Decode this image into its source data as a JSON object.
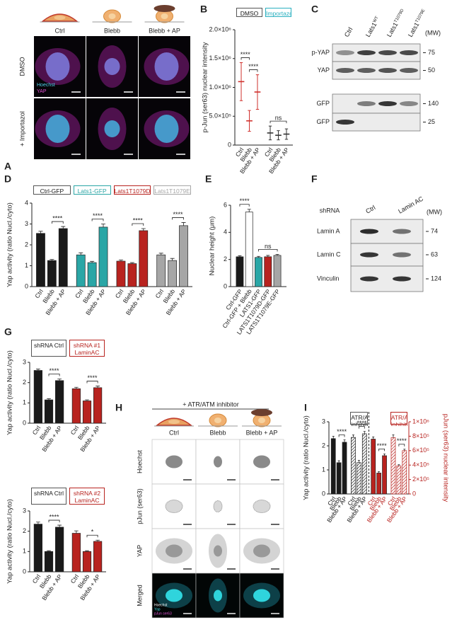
{
  "panel_labels": [
    "A",
    "B",
    "C",
    "D",
    "E",
    "F",
    "G",
    "H",
    "I"
  ],
  "panel_a": {
    "columns": [
      "Ctrl",
      "Blebb",
      "Blebb + AP"
    ],
    "rows": [
      "DMSO",
      "+ Importazol"
    ],
    "channels": [
      "Hoechst",
      "YAP"
    ]
  },
  "panel_c": {
    "lanes": [
      {
        "name": "Ctrl"
      },
      {
        "name": "Lats1",
        "sup": "WT"
      },
      {
        "name": "Lats1",
        "sup": "T1079D"
      },
      {
        "name": "Lats1",
        "sup": "T1079E"
      }
    ],
    "mw_label": "(MW)",
    "blots": [
      {
        "label": "p-YAP",
        "mw": 75
      },
      {
        "label": "YAP",
        "mw": 50
      },
      {
        "label": "GFP",
        "mw": 140
      },
      {
        "label": "GFP",
        "mw": 25
      }
    ]
  },
  "panel_f": {
    "header": "shRNA",
    "lanes": [
      "Ctrl",
      "Lamin AC"
    ],
    "mw_label": "(MW)",
    "blots": [
      {
        "label": "Lamin A",
        "mw": 74
      },
      {
        "label": "Lamin C",
        "mw": 63
      },
      {
        "label": "Vinculin",
        "mw": 124
      }
    ]
  },
  "panel_h": {
    "treatment": "+ ATR/ATM inhibitor",
    "columns": [
      "Ctrl",
      "Blebb",
      "Blebb + AP"
    ],
    "rows": [
      "Hoechst",
      "pJun (ser63)",
      "YAP",
      "Merged"
    ],
    "channels": [
      "Hoechst",
      "Yap",
      "pJun ser63"
    ]
  },
  "chart_data": [
    {
      "type": "dot",
      "ylabel": "p-Jun (ser63)  nuclear intensity",
      "categories": [
        "Ctrl",
        "Blebb",
        "Blebb + AP"
      ],
      "series": [
        {
          "name": "DMSO",
          "color": "#111111",
          "line_color": "#d0312d",
          "values": [
            1100000,
            420000,
            920000
          ],
          "errors": [
            330000,
            180000,
            300000
          ]
        },
        {
          "name": "Importazol",
          "color": "#2ab0c0",
          "line_color": "#333333",
          "values": [
            210000,
            170000,
            190000
          ],
          "errors": [
            120000,
            80000,
            90000
          ]
        }
      ],
      "ylim": [
        0,
        2000000
      ],
      "yticks": [
        0,
        {
          "value": 500000,
          "label": "5.0×10⁵"
        },
        {
          "value": 1000000,
          "label": "1.0×10⁶"
        },
        {
          "value": 1500000,
          "label": "1.5×10⁶"
        },
        {
          "value": 2000000,
          "label": "2.0×10⁶"
        }
      ],
      "annotations": [
        "****",
        "****",
        "ns"
      ]
    },
    {
      "type": "bar",
      "ylabel": "Yap activity (ratio Nucl./cyto)",
      "categories": [
        "Ctrl",
        "Blebb",
        "Blebb + AP"
      ],
      "series": [
        {
          "name": "Ctrl-GFP",
          "color": "#1a1a1a",
          "values": [
            2.55,
            1.25,
            2.78
          ],
          "errors": [
            0.1,
            0.05,
            0.1
          ]
        },
        {
          "name": "Lats1-GFP",
          "color": "#2aa6a6",
          "values": [
            1.52,
            1.15,
            2.85
          ],
          "errors": [
            0.1,
            0.06,
            0.15
          ]
        },
        {
          "name": "Lats1T1079D-GFP",
          "color": "#b8231f",
          "values": [
            1.22,
            1.1,
            2.68
          ],
          "errors": [
            0.06,
            0.05,
            0.1
          ]
        },
        {
          "name": "Lats1T1079E-GFP",
          "color": "#a6a6a6",
          "values": [
            1.52,
            1.25,
            2.92
          ],
          "errors": [
            0.08,
            0.1,
            0.15
          ]
        }
      ],
      "ylim": [
        0,
        4
      ],
      "yticks": [
        0,
        1,
        2,
        3,
        4
      ],
      "annotations": [
        "****",
        "****",
        "****",
        "****"
      ]
    },
    {
      "type": "bar",
      "ylabel": "Nuclear height (μm)",
      "categories": [
        "Ctrl-GFP",
        "Ctrl-GFP + Blebb",
        "LATS1-GFP",
        "LATS1T1079D-GFP",
        "LATS1T1079E-GFP"
      ],
      "values": [
        2.2,
        5.5,
        2.15,
        2.2,
        2.3
      ],
      "errors": [
        0.08,
        0.2,
        0.08,
        0.1,
        0.08
      ],
      "colors": [
        "#1a1a1a",
        "#ffffff",
        "#2aa6a6",
        "#b8231f",
        "#a6a6a6"
      ],
      "ylim": [
        0,
        6
      ],
      "yticks": [
        0,
        2,
        4,
        6
      ],
      "annotations": [
        "****",
        "ns"
      ]
    },
    {
      "type": "bar",
      "ylabel": "Yap activity (ratio Nucl./cyto)",
      "categories": [
        "Ctrl",
        "Blebb",
        "Blebb + AP"
      ],
      "series": [
        {
          "name": "shRNA Ctrl",
          "color": "#1a1a1a",
          "values": [
            2.6,
            1.15,
            2.1
          ],
          "errors": [
            0.07,
            0.06,
            0.08
          ]
        },
        {
          "name": "shRNA #1 LaminAC",
          "color": "#b8231f",
          "values": [
            1.7,
            1.1,
            1.75
          ],
          "errors": [
            0.07,
            0.05,
            0.08
          ]
        }
      ],
      "ylim": [
        0,
        3
      ],
      "yticks": [
        0,
        1,
        2,
        3
      ],
      "annotations": [
        "****",
        "****"
      ]
    },
    {
      "type": "bar",
      "ylabel": "Yap activity (ratio Nucl./cyto)",
      "categories": [
        "Ctrl",
        "Blebb",
        "Blebb + AP"
      ],
      "series": [
        {
          "name": "shRNA Ctrl",
          "color": "#1a1a1a",
          "values": [
            2.35,
            1.0,
            2.2
          ],
          "errors": [
            0.1,
            0.04,
            0.1
          ]
        },
        {
          "name": "shRNA #2 LaminAC",
          "color": "#b8231f",
          "values": [
            1.9,
            1.0,
            1.5
          ],
          "errors": [
            0.12,
            0.04,
            0.06
          ]
        }
      ],
      "ylim": [
        0,
        3
      ],
      "yticks": [
        0,
        1,
        2,
        3
      ],
      "annotations": [
        "****",
        "*"
      ]
    },
    {
      "type": "bar",
      "ylabel": "Yap activity (ratio Nucl./cyto)",
      "y2label": "pJun (ser63) nuclear intensity",
      "x_label_color_by_series": true,
      "categories": [
        "Ctrl",
        "Blebb",
        "Blebb + AP"
      ],
      "series": [
        {
          "color": "#1a1a1a",
          "values": [
            2.3,
            1.3,
            2.15
          ],
          "errors": [
            0.1,
            0.08,
            0.1
          ]
        },
        {
          "name": "ATR/ATM inhibitor",
          "color": "#1a1a1a",
          "hatch": true,
          "values": [
            2.35,
            1.3,
            2.5
          ],
          "errors": [
            0.1,
            0.1,
            0.1
          ]
        },
        {
          "color": "#b8231f",
          "axis": "y2",
          "values": [
            760000,
            290000,
            530000
          ],
          "errors": [
            30000,
            20000,
            25000
          ]
        },
        {
          "name": "ATR/ATM inhibitor",
          "color": "#b8231f",
          "hatch": true,
          "axis": "y2",
          "values": [
            780000,
            390000,
            600000
          ],
          "errors": [
            40000,
            15000,
            20000
          ]
        }
      ],
      "ylim": [
        0,
        3
      ],
      "yticks": [
        0,
        1,
        2,
        3
      ],
      "y2lim": [
        0,
        1000000
      ],
      "y2ticks": [
        0,
        {
          "value": 200000,
          "label": "2×10⁵"
        },
        {
          "value": 400000,
          "label": "4×10⁵"
        },
        {
          "value": 600000,
          "label": "6×10⁵"
        },
        {
          "value": 800000,
          "label": "8×10⁵"
        },
        {
          "value": 1000000,
          "label": "1×10⁶"
        }
      ],
      "annotations": [
        "****",
        "****",
        "****",
        "****"
      ]
    }
  ]
}
